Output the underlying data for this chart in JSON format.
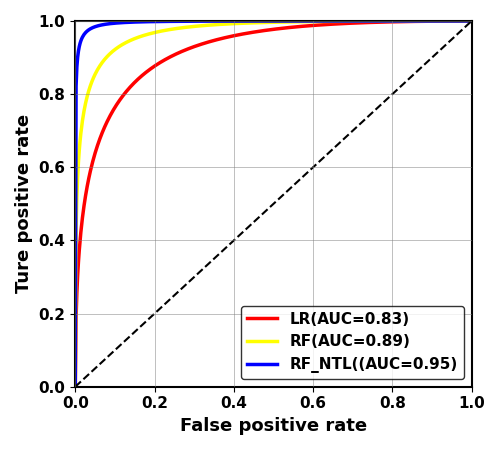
{
  "title": "",
  "xlabel": "False positive rate",
  "ylabel": "Ture positive rate",
  "xlim": [
    0.0,
    1.0
  ],
  "ylim": [
    0.0,
    1.0
  ],
  "xticks": [
    0.0,
    0.2,
    0.4,
    0.6,
    0.8,
    1.0
  ],
  "yticks": [
    0.0,
    0.2,
    0.4,
    0.6,
    0.8,
    1.0
  ],
  "curves": [
    {
      "label": "LR(AUC=0.83)",
      "color": "red",
      "auc": 0.83,
      "da": 2.0
    },
    {
      "label": "RF(AUC=0.89)",
      "color": "yellow",
      "auc": 0.89,
      "da": 2.7
    },
    {
      "label": "RF_NTL((AUC=0.95)",
      "color": "blue",
      "auc": 0.95,
      "da": 3.8
    }
  ],
  "diagonal_color": "black",
  "diagonal_linestyle": "--",
  "grid_color": "gray",
  "grid_linewidth": 0.5,
  "line_width": 2.5,
  "legend_fontsize": 11,
  "legend_loc": "lower right",
  "axis_label_fontsize": 13,
  "tick_fontsize": 11,
  "tick_label_fontweight": "bold",
  "axis_label_fontweight": "bold",
  "figsize": [
    5.0,
    4.5
  ],
  "dpi": 100
}
